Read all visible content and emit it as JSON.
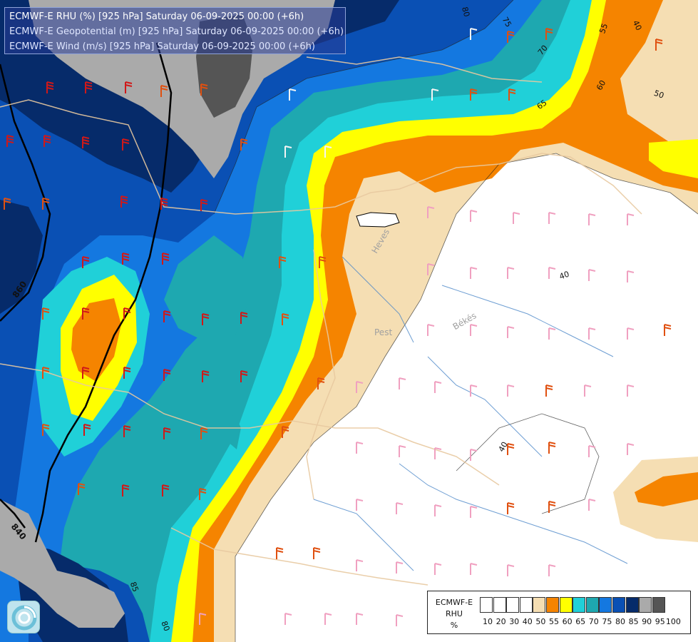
{
  "header": {
    "line1": "ECMWF-E RHU (%) [925 hPa] Saturday 06-09-2025 00:00 (+6h)",
    "line2": "ECMWF-E Geopotential (m) [925 hPa] Saturday 06-09-2025 00:00 (+6h)",
    "line3": "ECMWF-E Wind (m/s) [925 hPa] Saturday 06-09-2025 00:00 (+6h)"
  },
  "legend": {
    "title_line1": "ECMWF-E",
    "title_line2": "RHU",
    "title_line3": "%",
    "classes": [
      {
        "label": "10",
        "color": "#ffffff"
      },
      {
        "label": "20",
        "color": "#ffffff"
      },
      {
        "label": "30",
        "color": "#ffffff"
      },
      {
        "label": "40",
        "color": "#ffffff"
      },
      {
        "label": "50",
        "color": "#f5deb3"
      },
      {
        "label": "55",
        "color": "#f58400"
      },
      {
        "label": "60",
        "color": "#ffff00"
      },
      {
        "label": "65",
        "color": "#20d0d8"
      },
      {
        "label": "70",
        "color": "#1ea8b0"
      },
      {
        "label": "75",
        "color": "#1478e0"
      },
      {
        "label": "80",
        "color": "#0a50b4"
      },
      {
        "label": "85",
        "color": "#062b6a"
      },
      {
        "label": "90",
        "color": "#aaaaaa"
      },
      {
        "label": "95",
        "color": "#555555"
      },
      {
        "label": "100",
        "color": ""
      }
    ]
  },
  "places": {
    "heves": "Heves",
    "pest": "Pest",
    "bekes": "Békés"
  },
  "contour_labels": {
    "rh_80_top": "80",
    "rh_75": "75",
    "rh_70": "70",
    "rh_65": "65",
    "rh_60": "60",
    "rh_55": "55",
    "rh_50": "50",
    "rh_40_top": "40",
    "rh_40_mid": "40",
    "rh_40_low": "40",
    "rh_85": "85",
    "rh_80_bot": "80",
    "geo_860": "860",
    "geo_840": "840"
  },
  "colors": {
    "rh_white": "#ffffff",
    "rh_50": "#f5deb3",
    "rh_55": "#f58400",
    "rh_60": "#ffff00",
    "rh_65": "#20d0d8",
    "rh_70": "#1ea8b0",
    "rh_75": "#1478e0",
    "rh_80": "#0a50b4",
    "rh_85": "#062b6a",
    "rh_90": "#aaaaaa",
    "rh_95": "#555555"
  }
}
